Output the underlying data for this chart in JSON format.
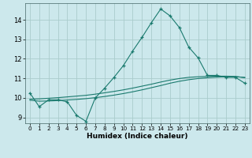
{
  "xlabel": "Humidex (Indice chaleur)",
  "ylabel": "",
  "bg_color": "#cce8ec",
  "grid_color": "#aacccc",
  "line_color": "#1a7a6e",
  "xlim": [
    -0.5,
    23.5
  ],
  "ylim": [
    8.7,
    14.85
  ],
  "yticks": [
    9,
    10,
    11,
    12,
    13,
    14
  ],
  "xticks": [
    0,
    1,
    2,
    3,
    4,
    5,
    6,
    7,
    8,
    9,
    10,
    11,
    12,
    13,
    14,
    15,
    16,
    17,
    18,
    19,
    20,
    21,
    22,
    23
  ],
  "main_x": [
    0,
    1,
    2,
    3,
    4,
    5,
    6,
    7,
    8,
    9,
    10,
    11,
    12,
    13,
    14,
    15,
    16,
    17,
    18,
    19,
    20,
    21,
    22,
    23
  ],
  "main_y": [
    10.25,
    9.55,
    9.9,
    9.9,
    9.8,
    9.1,
    8.8,
    10.0,
    10.5,
    11.05,
    11.65,
    12.4,
    13.1,
    13.85,
    14.55,
    14.2,
    13.6,
    12.6,
    12.05,
    11.15,
    11.15,
    11.05,
    11.05,
    10.75
  ],
  "line2_x": [
    0,
    1,
    2,
    3,
    4,
    5,
    6,
    7,
    8,
    9,
    10,
    11,
    12,
    13,
    14,
    15,
    16,
    17,
    18,
    19,
    20,
    21,
    22,
    23
  ],
  "line2_y": [
    9.88,
    9.83,
    9.84,
    9.86,
    9.89,
    9.92,
    9.96,
    10.01,
    10.07,
    10.14,
    10.22,
    10.31,
    10.41,
    10.52,
    10.63,
    10.75,
    10.85,
    10.93,
    10.99,
    11.03,
    11.06,
    11.08,
    11.08,
    11.05
  ],
  "line3_x": [
    0,
    1,
    2,
    3,
    4,
    5,
    6,
    7,
    8,
    9,
    10,
    11,
    12,
    13,
    14,
    15,
    16,
    17,
    18,
    19,
    20,
    21,
    22,
    23
  ],
  "line3_y": [
    9.93,
    9.95,
    9.98,
    10.01,
    10.05,
    10.09,
    10.13,
    10.19,
    10.26,
    10.33,
    10.41,
    10.5,
    10.6,
    10.7,
    10.81,
    10.91,
    10.99,
    11.05,
    11.08,
    11.1,
    11.11,
    11.11,
    11.1,
    11.03
  ]
}
